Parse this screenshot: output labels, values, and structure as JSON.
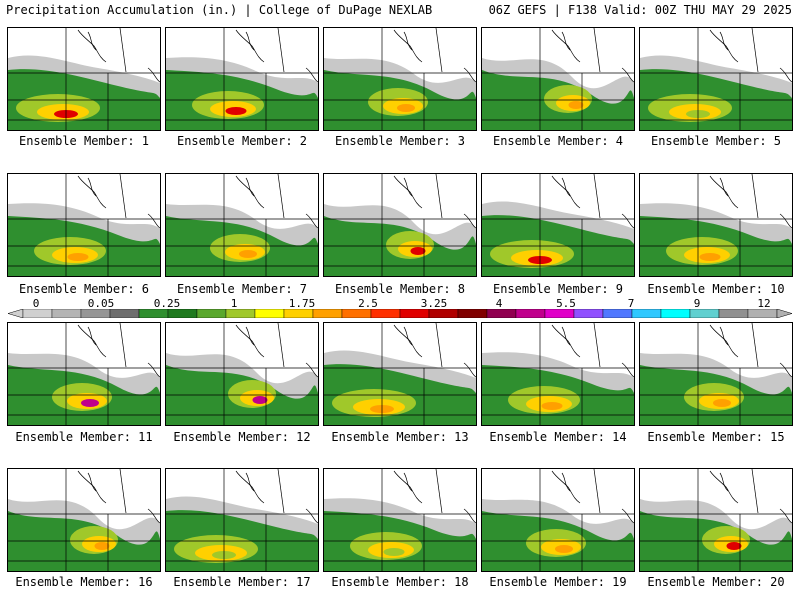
{
  "header": {
    "left": "Precipitation Accumulation (in.) | College of DuPage NEXLAB",
    "right": "06Z GEFS | F138 Valid: 00Z THU MAY 29 2025"
  },
  "colorbar": {
    "tick_labels": [
      "0",
      "0.05",
      "0.25",
      "1",
      "1.75",
      "2.5",
      "3.25",
      "4",
      "5.5",
      "7",
      "9",
      "12"
    ],
    "colors": [
      "#d0d0d0",
      "#b4b4b4",
      "#969696",
      "#6e6e6e",
      "#2f8f2f",
      "#1f7a1f",
      "#5aa82d",
      "#a0c82a",
      "#ffff00",
      "#ffd000",
      "#ffa000",
      "#ff7000",
      "#ff3000",
      "#e00000",
      "#b00000",
      "#800000",
      "#900050",
      "#c0008c",
      "#e000c8",
      "#9050ff",
      "#5078ff",
      "#30c8ff",
      "#00ffff",
      "#60d0d0",
      "#909090",
      "#b0b0b0"
    ]
  },
  "members": [
    {
      "label": "Ensemble Member: 1",
      "max": "red"
    },
    {
      "label": "Ensemble Member: 2",
      "max": "red"
    },
    {
      "label": "Ensemble Member: 3",
      "max": "orange"
    },
    {
      "label": "Ensemble Member: 4",
      "max": "orange"
    },
    {
      "label": "Ensemble Member: 5",
      "max": "green"
    },
    {
      "label": "Ensemble Member: 6",
      "max": "orange"
    },
    {
      "label": "Ensemble Member: 7",
      "max": "orange"
    },
    {
      "label": "Ensemble Member: 8",
      "max": "red"
    },
    {
      "label": "Ensemble Member: 9",
      "max": "red"
    },
    {
      "label": "Ensemble Member: 10",
      "max": "orange"
    },
    {
      "label": "Ensemble Member: 11",
      "max": "magenta"
    },
    {
      "label": "Ensemble Member: 12",
      "max": "magenta"
    },
    {
      "label": "Ensemble Member: 13",
      "max": "orange"
    },
    {
      "label": "Ensemble Member: 14",
      "max": "orange"
    },
    {
      "label": "Ensemble Member: 15",
      "max": "orange"
    },
    {
      "label": "Ensemble Member: 16",
      "max": "orange"
    },
    {
      "label": "Ensemble Member: 17",
      "max": "green"
    },
    {
      "label": "Ensemble Member: 18",
      "max": "green"
    },
    {
      "label": "Ensemble Member: 19",
      "max": "orange"
    },
    {
      "label": "Ensemble Member: 20",
      "max": "red"
    }
  ]
}
